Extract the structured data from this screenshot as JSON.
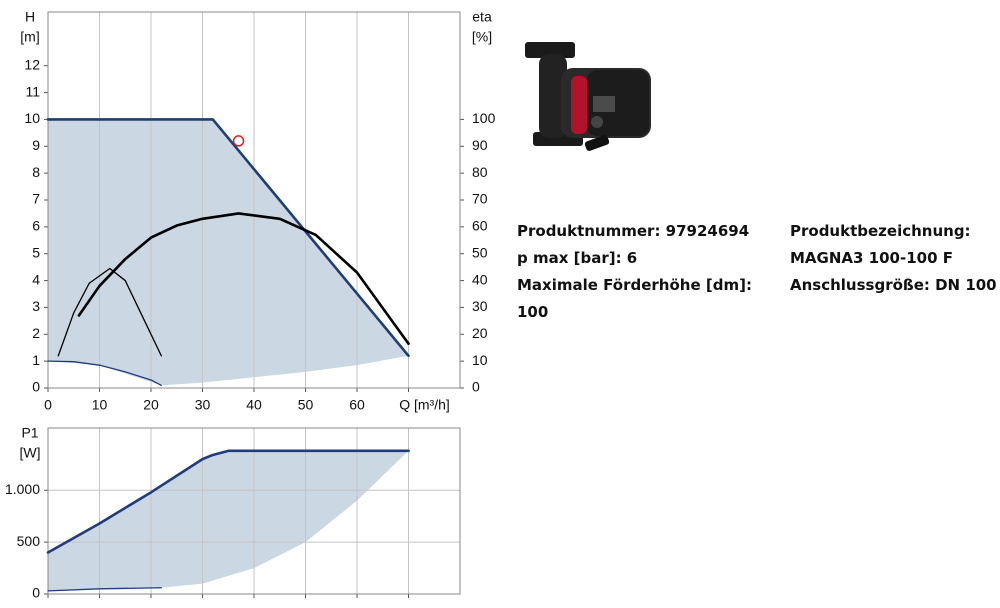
{
  "chart_data": [
    {
      "type": "line",
      "ylabel": "H",
      "yunit": "[m]",
      "y2label": "eta",
      "y2unit": "[%]",
      "xlim": [
        0,
        80
      ],
      "xticks": [
        0,
        10,
        20,
        30,
        40,
        50,
        60,
        {
          "value": 70,
          "label": "Q [m³/h]"
        }
      ],
      "xtick_labels": true,
      "ylim": [
        0,
        14
      ],
      "yticks": [
        0,
        1,
        2,
        3,
        4,
        5,
        6,
        7,
        8,
        9,
        10,
        11,
        12
      ],
      "y2lim": [
        0,
        140
      ],
      "y2ticks": [
        0,
        10,
        20,
        30,
        40,
        50,
        60,
        70,
        80,
        90,
        100
      ],
      "grid": "x",
      "area": {
        "color": "#cbd7e3",
        "upper": {
          "x": [
            0,
            32,
            70
          ],
          "values": [
            10,
            10,
            1.2
          ]
        },
        "lower": {
          "x": [
            0,
            10,
            22,
            30,
            40,
            50,
            60,
            70
          ],
          "values": [
            1,
            0.85,
            0.1,
            0.2,
            0.4,
            0.6,
            0.85,
            1.2
          ]
        }
      },
      "series": [
        {
          "style": "line",
          "color": "#1f3d7a",
          "x": [
            0,
            32,
            70
          ],
          "values": [
            10,
            10,
            1.2
          ]
        },
        {
          "style": "thin",
          "color": "#1f3d7a",
          "x": [
            0,
            5,
            10,
            15,
            20,
            22
          ],
          "values": [
            1,
            0.98,
            0.85,
            0.6,
            0.3,
            0.1
          ]
        },
        {
          "style": "line",
          "color": "#000000",
          "axis": "y2",
          "x": [
            6,
            10,
            15,
            20,
            25,
            30,
            37,
            45,
            52,
            60,
            70
          ],
          "values": [
            27,
            38,
            48,
            56,
            60.5,
            63,
            65,
            63,
            57,
            43,
            16.5
          ]
        },
        {
          "style": "thin",
          "color": "#000000",
          "axis": "y2",
          "x": [
            2,
            5,
            8,
            12,
            15,
            18,
            22
          ],
          "values": [
            12,
            28,
            39,
            44.5,
            40,
            28,
            12
          ]
        },
        {
          "style": "marker",
          "color": "#e02020",
          "x": [
            37
          ],
          "values": [
            9.2
          ]
        }
      ]
    },
    {
      "type": "line",
      "ylabel": "P1",
      "yunit": "[W]",
      "xlim": [
        0,
        80
      ],
      "xticks": [
        0,
        10,
        20,
        30,
        40,
        50,
        60,
        70
      ],
      "xtick_labels": false,
      "ylim": [
        0,
        1600
      ],
      "yticks": [
        0,
        500,
        {
          "value": 1000,
          "label": "1.000"
        }
      ],
      "grid": "both",
      "area": {
        "color": "#cbd7e3",
        "upper": {
          "x": [
            0,
            10,
            20,
            30,
            32,
            35,
            40,
            70
          ],
          "values": [
            400,
            680,
            980,
            1300,
            1340,
            1380,
            1380,
            1380
          ]
        },
        "lower": {
          "x": [
            0,
            10,
            22,
            30,
            40,
            50,
            60,
            70
          ],
          "values": [
            30,
            50,
            60,
            100,
            250,
            500,
            900,
            1380
          ]
        }
      },
      "series": [
        {
          "style": "line",
          "color": "#1f3d7a",
          "x": [
            0,
            10,
            20,
            30,
            32,
            35,
            40,
            70
          ],
          "values": [
            400,
            680,
            980,
            1300,
            1340,
            1380,
            1380,
            1380
          ]
        },
        {
          "style": "thin",
          "color": "#1f3d7a",
          "x": [
            0,
            10,
            22
          ],
          "values": [
            30,
            50,
            60
          ]
        }
      ]
    }
  ],
  "product": {
    "left": [
      "Produktnummer: 97924694",
      "p max [bar]: 6",
      "Maximale Förderhöhe [dm]:",
      "100"
    ],
    "right": [
      "Produktbezeichnung:",
      "MAGNA3 100-100 F",
      "Anschlussgröße: DN 100"
    ]
  }
}
